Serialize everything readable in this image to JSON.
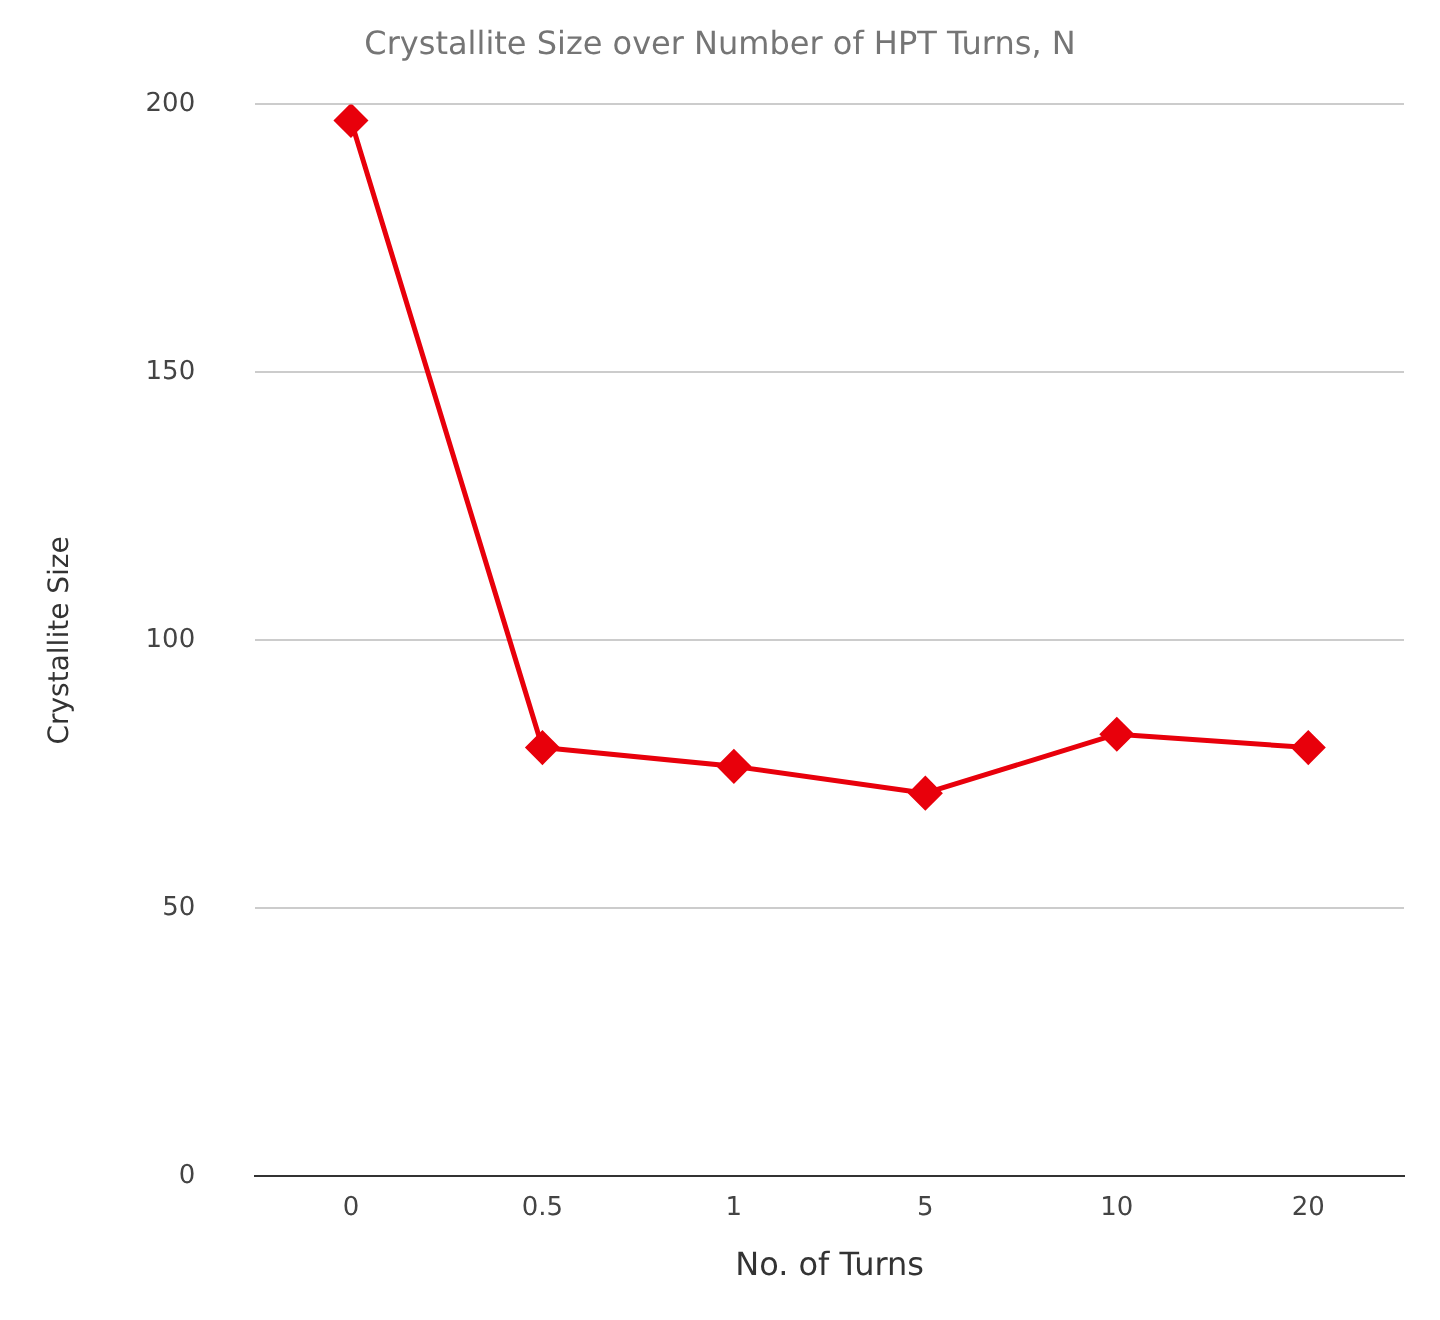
{
  "chart_data": {
    "type": "line",
    "title": "Crystallite Size over Number of HPT Turns, N",
    "xlabel": "No. of Turns",
    "ylabel": "Crystallite Size",
    "categories": [
      "0",
      "0.5",
      "1",
      "5",
      "10",
      "20"
    ],
    "series": [
      {
        "color": "#e8000b",
        "values": [
          197,
          80,
          76.5,
          71.5,
          82.5,
          80
        ]
      }
    ],
    "ylim": [
      0,
      200
    ],
    "yticks": [
      0,
      50,
      100,
      150,
      200
    ],
    "grid": "y",
    "marker": "diamond",
    "line_style": "solid",
    "legend": false
  }
}
